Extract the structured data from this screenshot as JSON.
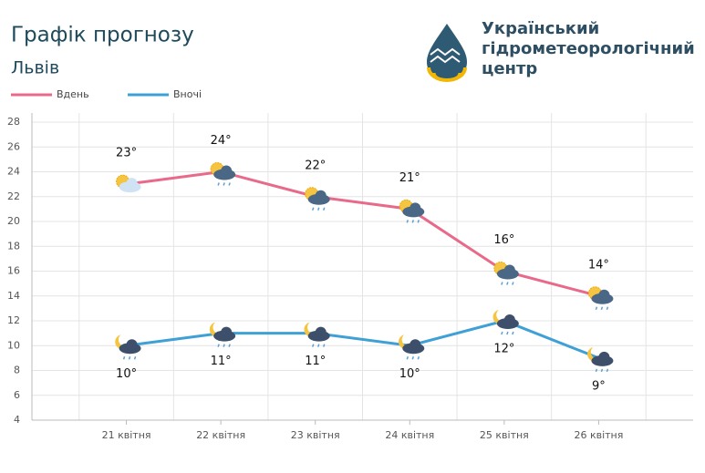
{
  "chart_data": {
    "type": "line",
    "title": "Графік прогнозу",
    "subtitle": "Львів",
    "categories": [
      "21 квітня",
      "22 квітня",
      "23 квітня",
      "24 квітня",
      "25 квітня",
      "26 квітня"
    ],
    "series": [
      {
        "name": "Вдень",
        "color": "#e8698a",
        "values": [
          23,
          24,
          22,
          21,
          16,
          14
        ],
        "value_labels": [
          "23°",
          "24°",
          "22°",
          "21°",
          "16°",
          "14°"
        ]
      },
      {
        "name": "Вночі",
        "color": "#3fa0d6",
        "values": [
          10,
          11,
          11,
          10,
          12,
          9
        ],
        "value_labels": [
          "10°",
          "11°",
          "11°",
          "10°",
          "12°",
          "9°"
        ]
      }
    ],
    "ylim": [
      4,
      28
    ],
    "yticks": [
      4,
      6,
      8,
      10,
      12,
      14,
      16,
      18,
      20,
      22,
      24,
      26,
      28
    ],
    "grid": true
  },
  "logo": {
    "lines": [
      "Український",
      "гідрометеорологічний",
      "центр"
    ]
  }
}
